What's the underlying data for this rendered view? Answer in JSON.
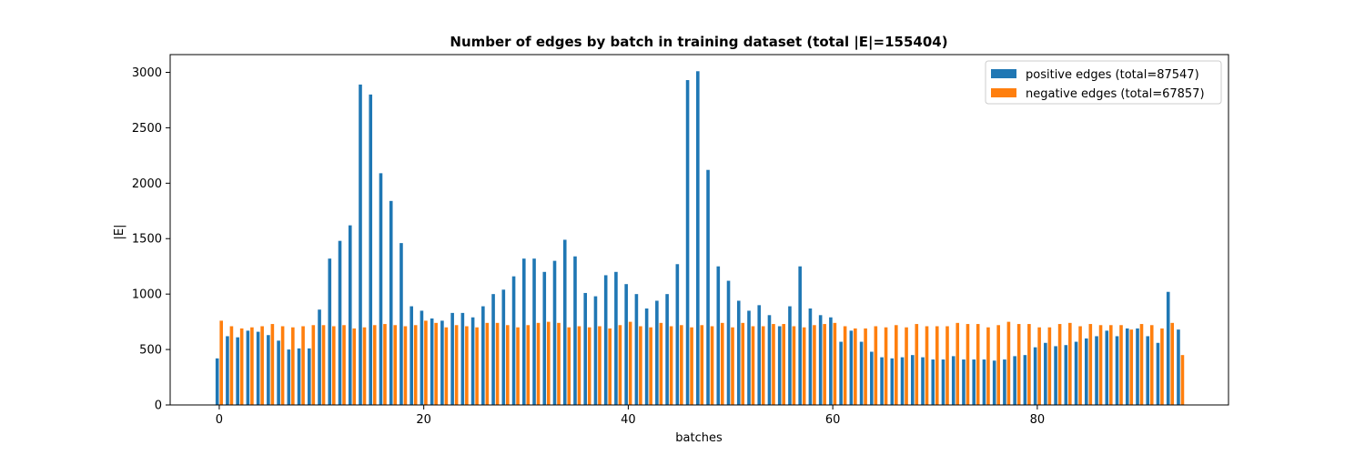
{
  "chart_data": {
    "type": "bar",
    "title": "Number of edges by batch in training dataset (total |E|=155404)",
    "xlabel": "batches",
    "ylabel": "|E|",
    "xlim": [
      -4.8,
      98.7
    ],
    "ylim": [
      0,
      3160
    ],
    "xticks": [
      0,
      20,
      40,
      60,
      80
    ],
    "yticks": [
      0,
      500,
      1000,
      1500,
      2000,
      2500,
      3000
    ],
    "grid": false,
    "legend_position": "top-right",
    "x": [
      0,
      1,
      2,
      3,
      4,
      5,
      6,
      7,
      8,
      9,
      10,
      11,
      12,
      13,
      14,
      15,
      16,
      17,
      18,
      19,
      20,
      21,
      22,
      23,
      24,
      25,
      26,
      27,
      28,
      29,
      30,
      31,
      32,
      33,
      34,
      35,
      36,
      37,
      38,
      39,
      40,
      41,
      42,
      43,
      44,
      45,
      46,
      47,
      48,
      49,
      50,
      51,
      52,
      53,
      54,
      55,
      56,
      57,
      58,
      59,
      60,
      61,
      62,
      63,
      64,
      65,
      66,
      67,
      68,
      69,
      70,
      71,
      72,
      73,
      74,
      75,
      76,
      77,
      78,
      79,
      80,
      81,
      82,
      83,
      84,
      85,
      86,
      87,
      88,
      89,
      90,
      91,
      92,
      93,
      94
    ],
    "series": [
      {
        "name": "positive edges (total=87547)",
        "color": "#1f77b4",
        "values": [
          420,
          620,
          610,
          670,
          660,
          630,
          580,
          500,
          510,
          510,
          860,
          1320,
          1480,
          1620,
          2890,
          2800,
          2090,
          1840,
          1460,
          890,
          850,
          780,
          760,
          830,
          830,
          790,
          890,
          1000,
          1040,
          1160,
          1320,
          1320,
          1200,
          1300,
          1490,
          1340,
          1010,
          980,
          1170,
          1200,
          1090,
          1000,
          870,
          940,
          1000,
          1270,
          2930,
          3010,
          2120,
          1250,
          1120,
          940,
          850,
          900,
          810,
          710,
          890,
          1250,
          870,
          810,
          790,
          570,
          670,
          570,
          480,
          430,
          420,
          430,
          450,
          430,
          410,
          410,
          440,
          410,
          410,
          410,
          400,
          410,
          440,
          450,
          520,
          560,
          530,
          540,
          570,
          600,
          620,
          670,
          620,
          690,
          690,
          620,
          560,
          1020,
          680
        ],
        "offset": -0.2
      },
      {
        "name": "negative edges (total=67857)",
        "color": "#ff7f0e",
        "values": [
          760,
          710,
          690,
          700,
          710,
          730,
          710,
          700,
          710,
          720,
          720,
          710,
          720,
          690,
          700,
          720,
          730,
          720,
          710,
          720,
          760,
          740,
          700,
          720,
          710,
          700,
          740,
          740,
          720,
          700,
          720,
          740,
          750,
          740,
          700,
          710,
          700,
          710,
          690,
          720,
          750,
          710,
          700,
          740,
          710,
          720,
          700,
          720,
          710,
          740,
          700,
          740,
          710,
          710,
          730,
          730,
          710,
          700,
          720,
          730,
          740,
          710,
          690,
          690,
          710,
          700,
          720,
          700,
          730,
          710,
          710,
          710,
          740,
          730,
          730,
          700,
          720,
          750,
          730,
          730,
          700,
          700,
          730,
          740,
          710,
          730,
          720,
          720,
          720,
          680,
          730,
          720,
          690,
          740,
          450
        ],
        "offset": 0.2
      }
    ]
  }
}
